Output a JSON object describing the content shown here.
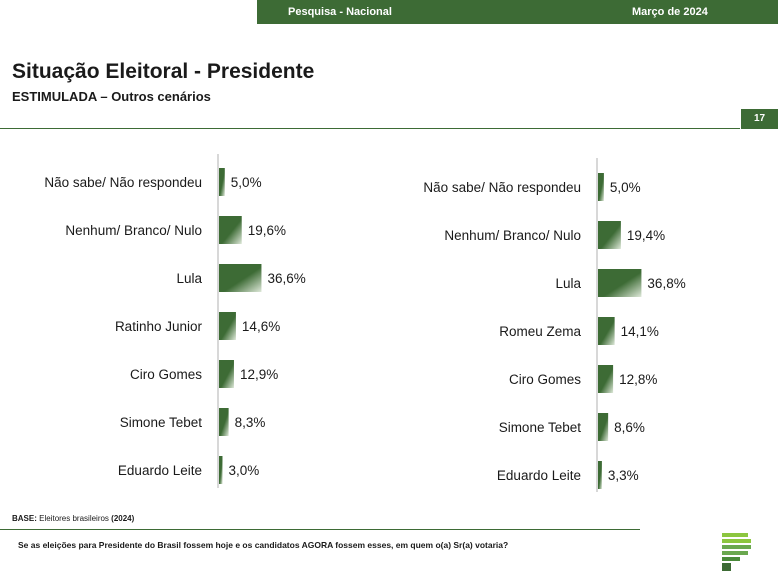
{
  "header": {
    "survey": "Pesquisa - Nacional",
    "date": "Março de 2024"
  },
  "title": "Situação Eleitoral - Presidente",
  "subtitle": "ESTIMULADA – Outros cenários",
  "page_number": "17",
  "footer": {
    "base_label": "BASE:",
    "base_text": "Eleitores brasileiros",
    "base_year": "(2024)",
    "question": "Se as eleições para Presidente do Brasil fossem hoje e os candidatos AGORA fossem esses, em quem o(a) Sr(a) votaria?"
  },
  "colors": {
    "brand_green": "#3d6b35",
    "bar_dark": "#3d6b35",
    "bar_light": "#dfe9da"
  },
  "chart_data": [
    {
      "type": "bar",
      "orientation": "horizontal",
      "categories": [
        "Não sabe/ Não respondeu",
        "Nenhum/ Branco/ Nulo",
        "Lula",
        "Ratinho Junior",
        "Ciro Gomes",
        "Simone Tebet",
        "Eduardo Leite"
      ],
      "values": [
        5.0,
        19.6,
        36.6,
        14.6,
        12.9,
        8.3,
        3.0
      ],
      "labels": [
        "5,0%",
        "19,6%",
        "36,6%",
        "14,6%",
        "12,9%",
        "8,3%",
        "3,0%"
      ],
      "unit": "%"
    },
    {
      "type": "bar",
      "orientation": "horizontal",
      "categories": [
        "Não sabe/ Não respondeu",
        "Nenhum/ Branco/ Nulo",
        "Lula",
        "Romeu Zema",
        "Ciro Gomes",
        "Simone Tebet",
        "Eduardo Leite"
      ],
      "values": [
        5.0,
        19.4,
        36.8,
        14.1,
        12.8,
        8.6,
        3.3
      ],
      "labels": [
        "5,0%",
        "19,4%",
        "36,8%",
        "14,1%",
        "12,8%",
        "8,6%",
        "3,3%"
      ],
      "unit": "%"
    }
  ]
}
